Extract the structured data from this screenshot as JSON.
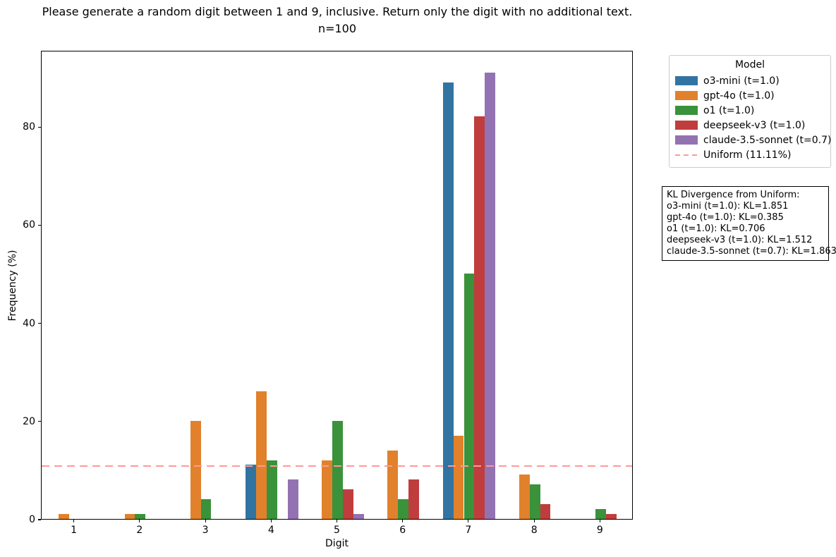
{
  "chart_data": {
    "type": "bar",
    "title": "Please generate a random digit between 1 and 9, inclusive. Return only the digit with no additional text.",
    "subtitle": "n=100",
    "xlabel": "Digit",
    "ylabel": "Frequency (%)",
    "categories": [
      "1",
      "2",
      "3",
      "4",
      "5",
      "6",
      "7",
      "8",
      "9"
    ],
    "series": [
      {
        "name": "o3-mini (t=1.0)",
        "color": "#3274a1",
        "values": [
          0,
          0,
          0,
          11,
          0,
          0,
          89,
          0,
          0
        ]
      },
      {
        "name": "gpt-4o (t=1.0)",
        "color": "#e1812c",
        "values": [
          1,
          1,
          20,
          26,
          12,
          14,
          17,
          9,
          0
        ]
      },
      {
        "name": "o1 (t=1.0)",
        "color": "#3a923a",
        "values": [
          0,
          1,
          4,
          12,
          20,
          4,
          50,
          7,
          2
        ]
      },
      {
        "name": "deepseek-v3 (t=1.0)",
        "color": "#c03d3d",
        "values": [
          0,
          0,
          0,
          0,
          6,
          8,
          82,
          3,
          1
        ]
      },
      {
        "name": "claude-3.5-sonnet (t=0.7)",
        "color": "#9372b2",
        "values": [
          0,
          0,
          0,
          8,
          1,
          0,
          91,
          0,
          0
        ]
      }
    ],
    "uniform_line": {
      "label": "Uniform (11.11%)",
      "value": 11.11,
      "color": "#ff9999"
    },
    "ylim": [
      0,
      95.55
    ],
    "yticks": [
      0,
      20,
      40,
      60,
      80
    ],
    "grid": false,
    "legend": {
      "title": "Model",
      "position": "upper right outside"
    },
    "kl_box": {
      "title": "KL Divergence from Uniform:",
      "lines": [
        "o3-mini (t=1.0): KL=1.851",
        "gpt-4o (t=1.0): KL=0.385",
        "o1 (t=1.0): KL=0.706",
        "deepseek-v3 (t=1.0): KL=1.512",
        "claude-3.5-sonnet (t=0.7): KL=1.863"
      ]
    }
  }
}
